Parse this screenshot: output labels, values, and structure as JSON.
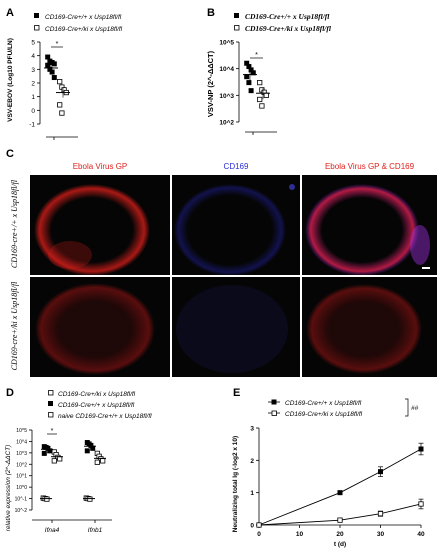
{
  "panels": {
    "A": {
      "letter": "A"
    },
    "B": {
      "letter": "B"
    },
    "C": {
      "letter": "C"
    },
    "D": {
      "letter": "D"
    },
    "E": {
      "letter": "E"
    }
  },
  "legend_common": {
    "wt": "CD169-Cre+/+ x Usp18fl/fl",
    "ki": "CD169-Cre+/ki x Usp18fl/fl",
    "naive": "naive CD169-Cre+/+ x Usp18fl/fl"
  },
  "panelC": {
    "col_headers": [
      "Ebola Virus GP",
      "CD169",
      "Ebola Virus GP & CD169"
    ],
    "header_colors": [
      "#e0201b",
      "#2b2bd6",
      "#e0201b"
    ],
    "row_labels": [
      "CD169-cre+/+ x Usp18fl/fl",
      "CD169-cre+/ki x Usp18fl/fl"
    ]
  },
  "chart_data": [
    {
      "panel": "A",
      "type": "scatter",
      "ylabel": "VSV-EBOV (Log10 PFU/LN)",
      "ylim": [
        -1,
        5
      ],
      "yticks": [
        "5",
        "4",
        "3",
        "2",
        "1",
        "0",
        "-1"
      ],
      "significance": "*",
      "series": [
        {
          "name": "CD169-Cre+/+ x Usp18fl/fl",
          "marker": "filled-square",
          "mean": 3.1,
          "values": [
            3.9,
            3.6,
            3.5,
            3.4,
            3.3,
            3.0,
            2.8,
            2.4
          ]
        },
        {
          "name": "CD169-Cre+/ki x Usp18fl/fl",
          "marker": "open-square",
          "mean": 1.3,
          "values": [
            2.1,
            1.7,
            1.5,
            1.3,
            0.4,
            -0.2
          ]
        }
      ]
    },
    {
      "panel": "B",
      "type": "scatter",
      "ylabel": "VSV-NP (2^-ΔΔCT)",
      "yscale": "log",
      "ylim": [
        100,
        100000
      ],
      "yticks": [
        "10^5",
        "10^4",
        "10^3",
        "10^2"
      ],
      "significance": "*",
      "series": [
        {
          "name": "CD169-Cre+/+ x Usp18fl/fl",
          "marker": "filled-square",
          "mean": 6000,
          "values": [
            16000,
            12000,
            9000,
            7000,
            5000,
            3000,
            1500
          ]
        },
        {
          "name": "CD169-Cre+/ki x Usp18fl/fl",
          "marker": "open-square",
          "mean": 1200,
          "values": [
            3000,
            1600,
            1300,
            1000,
            700,
            400
          ]
        }
      ]
    },
    {
      "panel": "D",
      "type": "scatter",
      "ylabel": "relative expression (2^-ΔΔCT)",
      "yscale": "log",
      "ylim": [
        0.01,
        100000
      ],
      "yticks": [
        "10^5",
        "10^4",
        "10^3",
        "10^2",
        "10^1",
        "10^0",
        "10^-1",
        "10^-2"
      ],
      "categories": [
        "Ifna4",
        "Ifnb1"
      ],
      "significance": "*",
      "series": [
        {
          "name": "CD169-Cre+/ki x Usp18fl/fl",
          "marker": "open-square",
          "values": [
            [
              1200,
              700,
              400,
              300,
              200
            ],
            [
              900,
              500,
              300,
              200,
              150
            ]
          ]
        },
        {
          "name": "CD169-Cre+/+ x Usp18fl/fl",
          "marker": "filled-square",
          "values": [
            [
              3500,
              3000,
              2500,
              1500,
              900
            ],
            [
              8000,
              6000,
              4500,
              2500,
              1500
            ]
          ]
        },
        {
          "name": "naive CD169-Cre+/+ x Usp18fl/fl",
          "marker": "open-square",
          "values": [
            [
              0.11,
              0.1,
              0.09
            ],
            [
              0.11,
              0.1,
              0.09
            ]
          ]
        }
      ]
    },
    {
      "panel": "E",
      "type": "line",
      "xlabel": "t (d)",
      "ylabel": "Neutralizing total Ig (-log2 x 10)",
      "x": [
        0,
        20,
        30,
        40
      ],
      "xlim": [
        0,
        40
      ],
      "ylim": [
        0,
        3
      ],
      "xticks": [
        "0",
        "10",
        "20",
        "30",
        "40"
      ],
      "yticks": [
        "0",
        "1",
        "2",
        "3"
      ],
      "significance": "##",
      "series": [
        {
          "name": "CD169-Cre+/+ x Usp18fl/fl",
          "marker": "filled-square",
          "values": [
            0,
            1.0,
            1.65,
            2.35
          ],
          "errors": [
            0,
            0.03,
            0.15,
            0.18
          ]
        },
        {
          "name": "CD169-Cre+/ki x Usp18fl/fl",
          "marker": "open-square",
          "values": [
            0,
            0.15,
            0.35,
            0.65
          ],
          "errors": [
            0,
            0.05,
            0.08,
            0.15
          ]
        }
      ]
    }
  ]
}
